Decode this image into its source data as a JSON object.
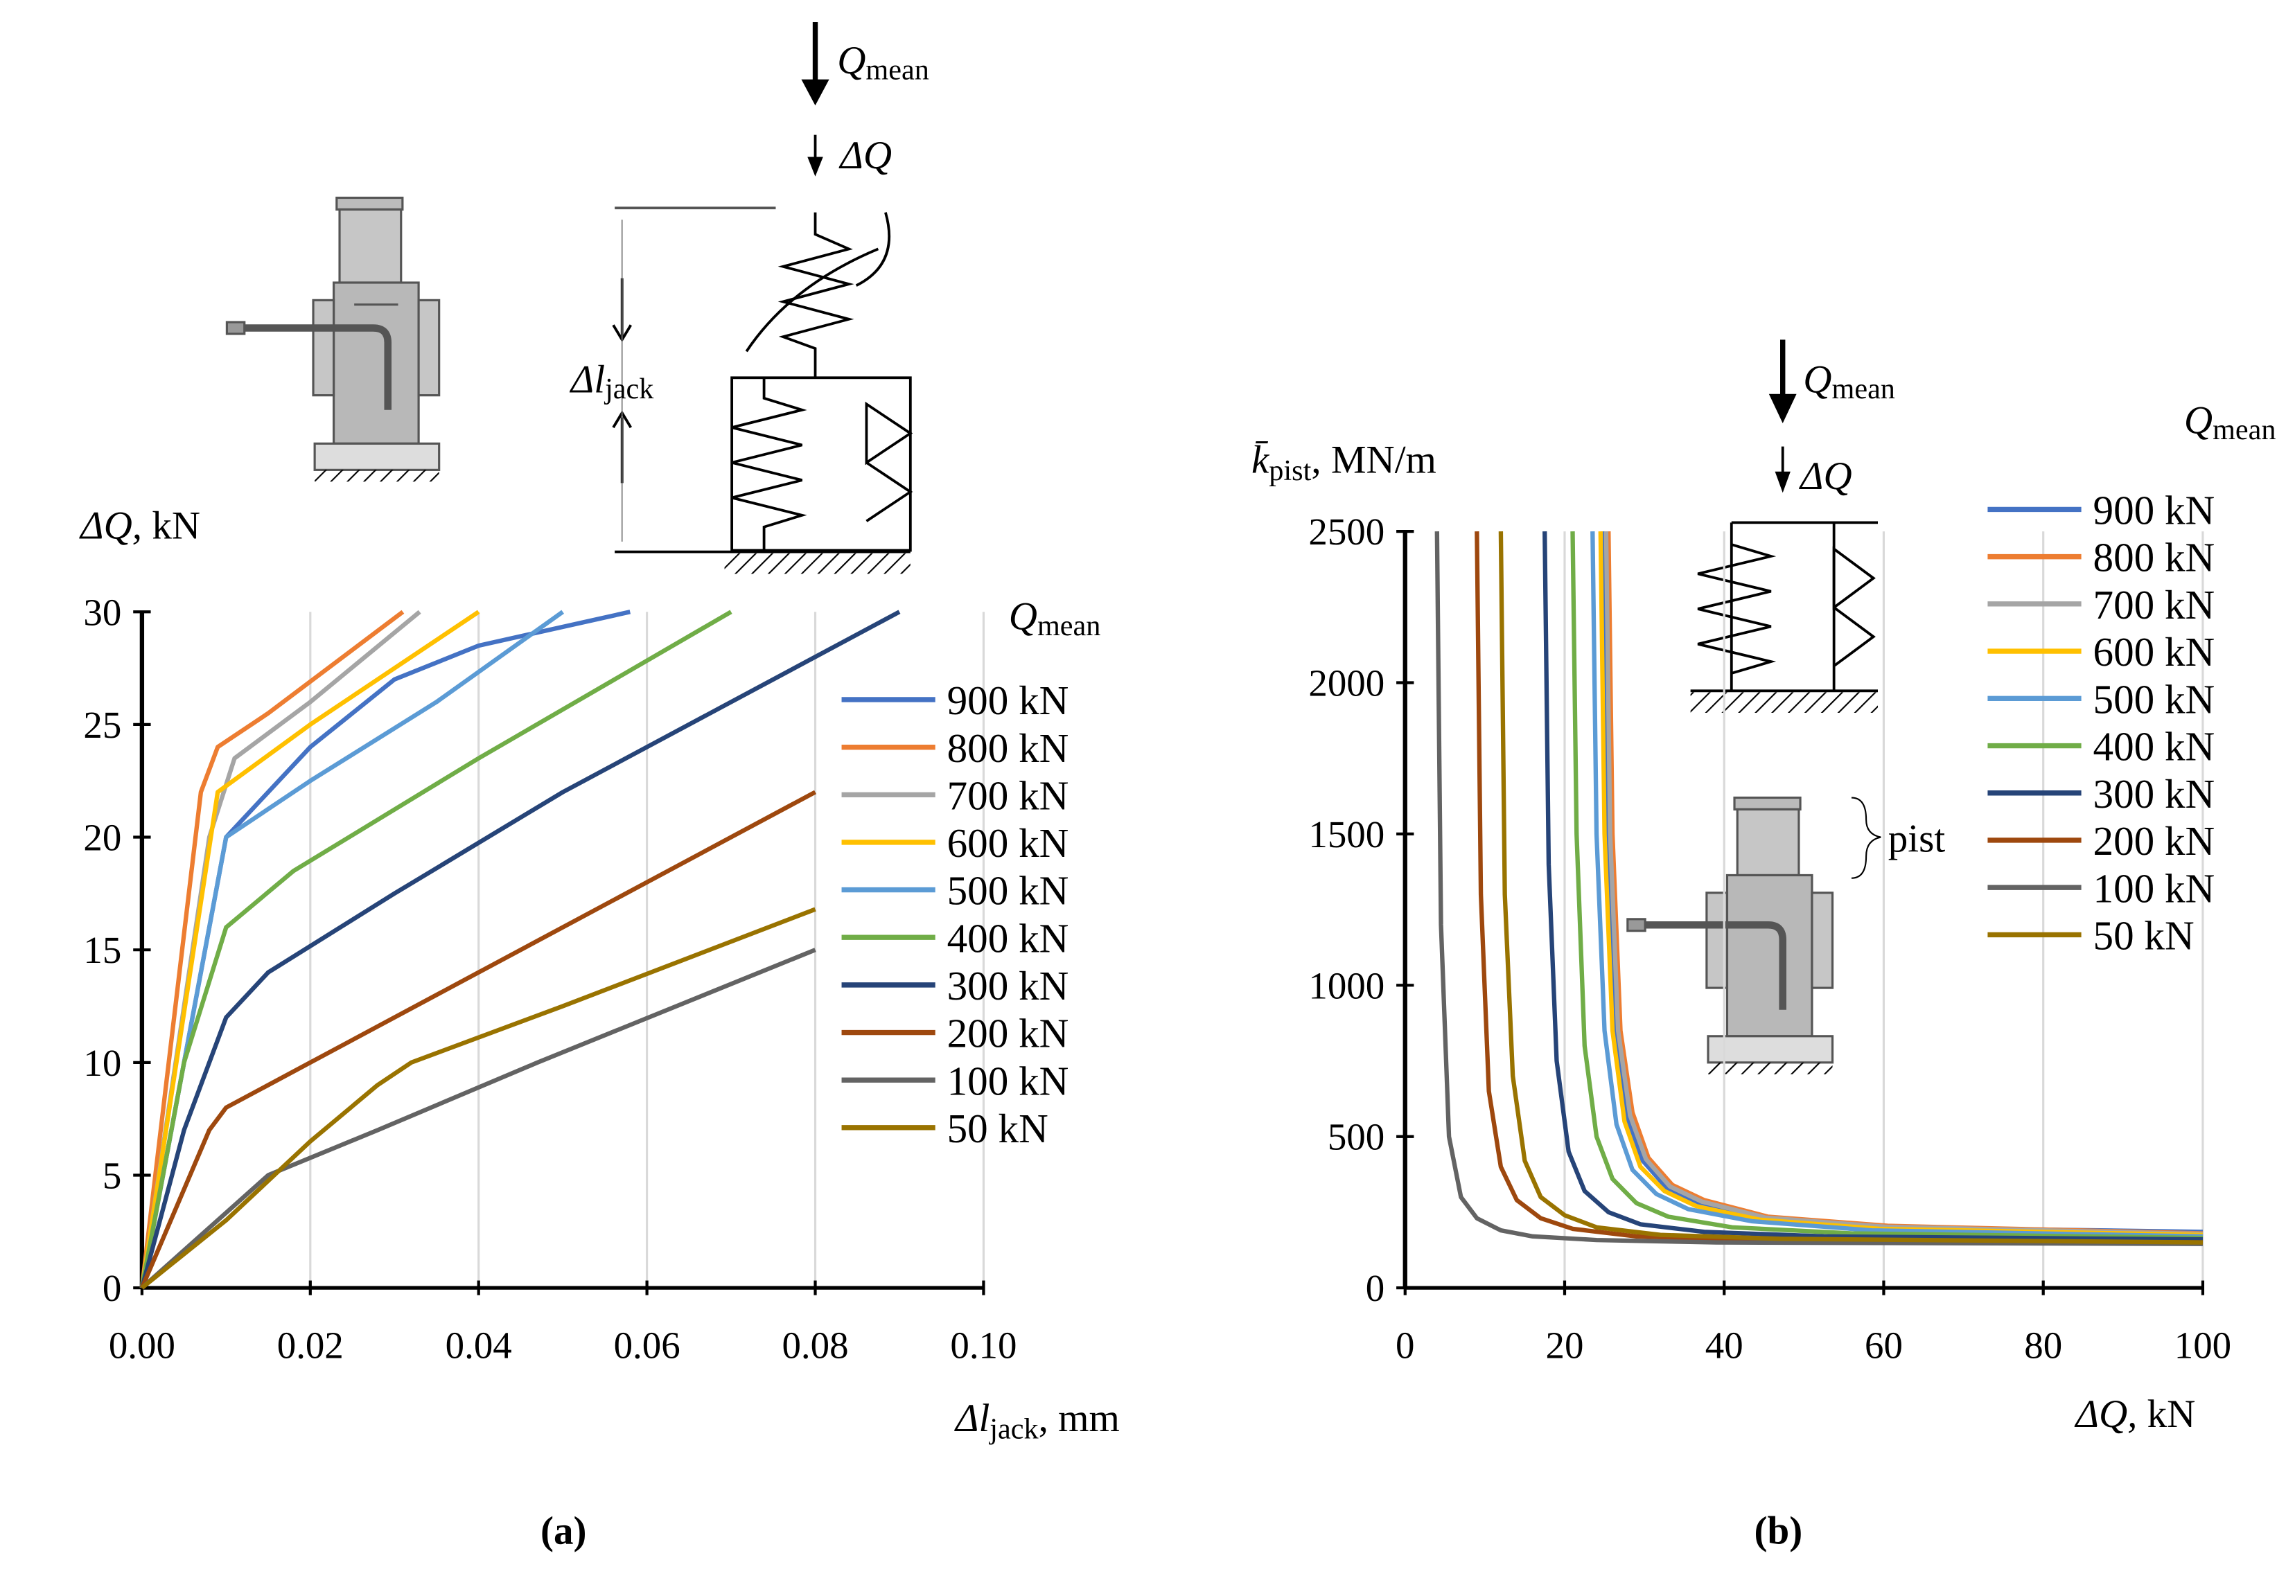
{
  "chart_data": [
    {
      "type": "line",
      "x_label": {
        "main": "Δl",
        "sub": "jack",
        "rest": ", mm"
      },
      "y_label": {
        "main": "ΔQ,",
        "rest": " kN"
      },
      "panel": "(a)",
      "legend_title": {
        "main": "Q",
        "sub": "mean"
      },
      "annotations": [
        {
          "main": "Q",
          "sub": "mean"
        },
        {
          "main": "ΔQ"
        },
        {
          "main": "Δl",
          "sub": "jack"
        }
      ],
      "xlim": [
        0,
        0.1
      ],
      "xticks": [
        {
          "value": 0,
          "label": "0.00"
        },
        {
          "value": 0.02,
          "label": "0.02"
        },
        {
          "value": 0.04,
          "label": "0.04"
        },
        {
          "value": 0.06,
          "label": "0.06"
        },
        {
          "value": 0.08,
          "label": "0.08"
        },
        {
          "value": 0.1,
          "label": "0.10"
        }
      ],
      "ylim": [
        0,
        30
      ],
      "yticks": [
        0,
        5,
        10,
        15,
        20,
        25,
        30
      ],
      "grid": "x",
      "series": [
        {
          "name": "900 kN",
          "color": "#4472c4",
          "x": [
            0,
            0.01,
            0.02,
            0.03,
            0.04,
            0.058
          ],
          "values": [
            0,
            20,
            24,
            27,
            28.5,
            30
          ]
        },
        {
          "name": "800 kN",
          "color": "#ed7d31",
          "x": [
            0,
            0.007,
            0.009,
            0.015,
            0.031
          ],
          "values": [
            0,
            22,
            24,
            25.5,
            30
          ]
        },
        {
          "name": "700 kN",
          "color": "#a5a5a5",
          "x": [
            0,
            0.008,
            0.011,
            0.02,
            0.033
          ],
          "values": [
            0,
            20,
            23.5,
            26,
            30
          ]
        },
        {
          "name": "600 kN",
          "color": "#ffc000",
          "x": [
            0,
            0.009,
            0.02,
            0.04
          ],
          "values": [
            0,
            22,
            25,
            30
          ]
        },
        {
          "name": "500 kN",
          "color": "#5b9bd5",
          "x": [
            0,
            0.01,
            0.02,
            0.035,
            0.05
          ],
          "values": [
            0,
            20,
            22.5,
            26,
            30
          ]
        },
        {
          "name": "400 kN",
          "color": "#70ad47",
          "x": [
            0,
            0.005,
            0.01,
            0.018,
            0.04,
            0.07
          ],
          "values": [
            0,
            10,
            16,
            18.5,
            23.5,
            30
          ]
        },
        {
          "name": "300 kN",
          "color": "#264478",
          "x": [
            0,
            0.005,
            0.01,
            0.015,
            0.03,
            0.05,
            0.09
          ],
          "values": [
            0,
            7,
            12,
            14,
            17.5,
            22,
            30
          ]
        },
        {
          "name": "200 kN",
          "color": "#9e480e",
          "x": [
            0,
            0.008,
            0.01,
            0.02,
            0.04,
            0.08
          ],
          "values": [
            0,
            7,
            8,
            10,
            14,
            22
          ]
        },
        {
          "name": "100 kN",
          "color": "#636363",
          "x": [
            0,
            0.015,
            0.028,
            0.047,
            0.08
          ],
          "values": [
            0,
            5,
            7,
            10,
            15
          ]
        },
        {
          "name": "50 kN",
          "color": "#997300",
          "x": [
            0,
            0.01,
            0.02,
            0.028,
            0.032,
            0.05,
            0.08
          ],
          "values": [
            0,
            3,
            6.5,
            9,
            10,
            12.5,
            16.8
          ]
        }
      ]
    },
    {
      "type": "line",
      "x_label": {
        "main": "ΔQ,",
        "rest": " kN"
      },
      "y_label": {
        "main": "k̄",
        "sub": "pist",
        "rest": ", MN/m"
      },
      "panel": "(b)",
      "legend_title": {
        "main": "Q",
        "sub": "mean"
      },
      "annotations": [
        {
          "main": "Q",
          "sub": "mean"
        },
        {
          "main": "ΔQ"
        },
        {
          "main": "pist"
        }
      ],
      "xlim": [
        0,
        100
      ],
      "xticks": [
        0,
        20,
        40,
        60,
        80,
        100
      ],
      "ylim": [
        0,
        2500
      ],
      "yticks": [
        0,
        500,
        1000,
        1500,
        2000,
        2500
      ],
      "grid": "x",
      "series": [
        {
          "name": "900 kN",
          "color": "#4472c4",
          "x": [
            24.8,
            25.3,
            26.3,
            27.8,
            29.8,
            32.8,
            36.8,
            44.8,
            59.8,
            100
          ],
          "values": [
            2500,
            1500,
            850,
            560,
            420,
            330,
            280,
            230,
            200,
            185
          ]
        },
        {
          "name": "800 kN",
          "color": "#ed7d31",
          "x": [
            25.5,
            26,
            27,
            28.5,
            30.5,
            33.5,
            37.5,
            45.5,
            60.5,
            100
          ],
          "values": [
            2500,
            1500,
            850,
            580,
            430,
            340,
            290,
            235,
            205,
            180
          ]
        },
        {
          "name": "700 kN",
          "color": "#a5a5a5",
          "x": [
            25.2,
            25.7,
            26.7,
            28.2,
            30.2,
            33.2,
            37.2,
            45.2,
            60.2,
            100
          ],
          "values": [
            2500,
            1500,
            850,
            570,
            425,
            335,
            285,
            232,
            202,
            178
          ]
        },
        {
          "name": "600 kN",
          "color": "#ffc000",
          "x": [
            24.5,
            25,
            26,
            27.5,
            29.5,
            32.5,
            36.5,
            44.5,
            59.5,
            100
          ],
          "values": [
            2500,
            1500,
            850,
            550,
            400,
            320,
            270,
            225,
            195,
            175
          ]
        },
        {
          "name": "500 kN",
          "color": "#5b9bd5",
          "x": [
            23.5,
            24,
            25,
            26.5,
            28.5,
            31.5,
            35.5,
            43.5,
            58.5,
            100
          ],
          "values": [
            2500,
            1500,
            850,
            540,
            390,
            310,
            260,
            220,
            190,
            170
          ]
        },
        {
          "name": "400 kN",
          "color": "#70ad47",
          "x": [
            21,
            21.5,
            22.5,
            24,
            26,
            29,
            33,
            41,
            56,
            100
          ],
          "values": [
            2500,
            1500,
            800,
            500,
            360,
            280,
            235,
            200,
            180,
            165
          ]
        },
        {
          "name": "300 kN",
          "color": "#264478",
          "x": [
            17.5,
            18,
            19,
            20.5,
            22.5,
            25.5,
            29.5,
            37.5,
            52.5,
            100
          ],
          "values": [
            2500,
            1400,
            750,
            450,
            320,
            250,
            210,
            185,
            170,
            160
          ]
        },
        {
          "name": "200 kN",
          "color": "#9e480e",
          "x": [
            9,
            9.5,
            10.5,
            12,
            14,
            17,
            21,
            29,
            44,
            100
          ],
          "values": [
            2500,
            1300,
            650,
            400,
            290,
            230,
            195,
            170,
            158,
            150
          ]
        },
        {
          "name": "100 kN",
          "color": "#636363",
          "x": [
            4,
            4.5,
            5.5,
            7,
            9,
            12,
            16,
            24,
            39,
            100
          ],
          "values": [
            2500,
            1200,
            500,
            300,
            230,
            190,
            170,
            158,
            150,
            145
          ]
        },
        {
          "name": "50 kN",
          "color": "#997300",
          "x": [
            12,
            12.5,
            13.5,
            15,
            17,
            20,
            24,
            32,
            47,
            100
          ],
          "values": [
            2500,
            1300,
            700,
            420,
            300,
            240,
            200,
            175,
            162,
            150
          ]
        }
      ]
    }
  ]
}
